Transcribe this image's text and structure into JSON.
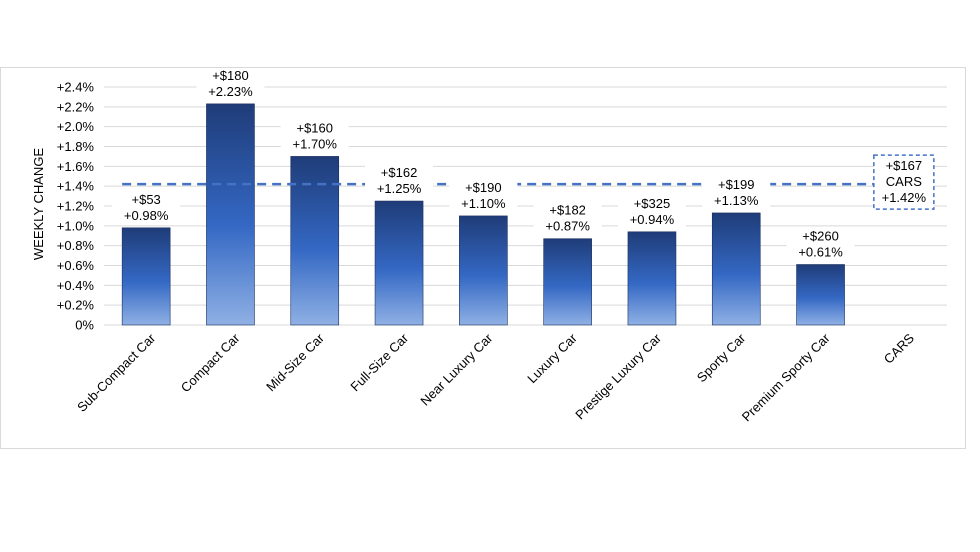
{
  "chart_data": {
    "type": "bar",
    "ylabel": "WEEKLY CHANGE",
    "xlabel": "",
    "title": "",
    "ylim": [
      0,
      2.4
    ],
    "ytick_step": 0.2,
    "ytick_labels": [
      "0%",
      "+0.2%",
      "+0.4%",
      "+0.6%",
      "+0.8%",
      "+1.0%",
      "+1.2%",
      "+1.4%",
      "+1.6%",
      "+1.8%",
      "+2.0%",
      "+2.2%",
      "+2.4%"
    ],
    "grid": "horizontal",
    "categories": [
      "Sub-Compact Car",
      "Compact Car",
      "Mid-Size Car",
      "Full-Size Car",
      "Near Luxury Car",
      "Luxury Car",
      "Prestige Luxury Car",
      "Sporty Car",
      "Premium Sporty Car",
      "CARS"
    ],
    "values": [
      0.98,
      2.23,
      1.7,
      1.25,
      1.1,
      0.87,
      0.94,
      1.13,
      0.61,
      null
    ],
    "data_labels": [
      [
        "+$53",
        "+0.98%"
      ],
      [
        "+$180",
        "+2.23%"
      ],
      [
        "+$160",
        "+1.70%"
      ],
      [
        "+$162",
        "+1.25%"
      ],
      [
        "+$190",
        "+1.10%"
      ],
      [
        "+$182",
        "+0.87%"
      ],
      [
        "+$325",
        "+0.94%"
      ],
      [
        "+$199",
        "+1.13%"
      ],
      [
        "+$260",
        "+0.61%"
      ],
      null
    ],
    "reference_line": {
      "value": 1.42,
      "style": "dashed",
      "label": [
        "+$167",
        "CARS",
        "+1.42%"
      ]
    },
    "colors": {
      "bar_top": "#1f3c78",
      "bar_mid": "#3468c4",
      "bar_bottom": "#8fb0e4",
      "reference_line": "#4472c4",
      "grid": "#d9d9d9"
    }
  }
}
